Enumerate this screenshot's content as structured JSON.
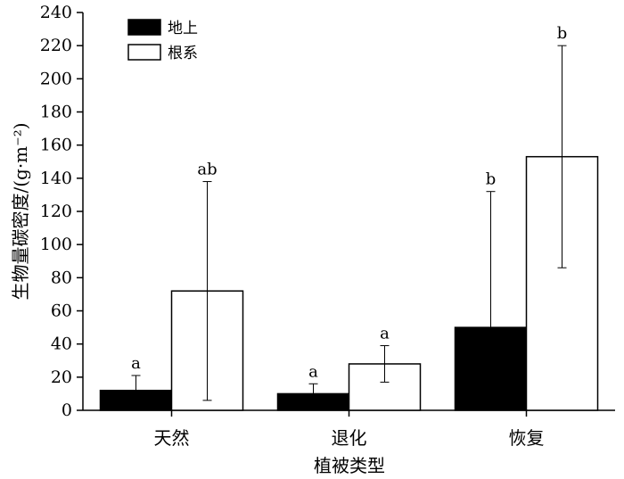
{
  "chart_data": {
    "type": "bar",
    "categories": [
      "天然",
      "退化",
      "恢复"
    ],
    "series": [
      {
        "name": "地上",
        "color": "#000000",
        "values": [
          12,
          10,
          50
        ],
        "error": [
          9,
          6,
          82
        ],
        "sig_labels": [
          "a",
          "a",
          "b"
        ]
      },
      {
        "name": "根系",
        "color": "#ffffff",
        "values": [
          72,
          28,
          153
        ],
        "error": [
          66,
          11,
          67
        ],
        "sig_labels": [
          "ab",
          "a",
          "b"
        ]
      }
    ],
    "xlabel": "植被类型",
    "ylabel": "生物量碳密度/(g·m⁻²)",
    "ylim": [
      0,
      240
    ],
    "yticks": [
      0,
      20,
      40,
      60,
      80,
      100,
      120,
      140,
      160,
      180,
      200,
      220,
      240
    ],
    "grid": false,
    "legend": "top-left"
  }
}
